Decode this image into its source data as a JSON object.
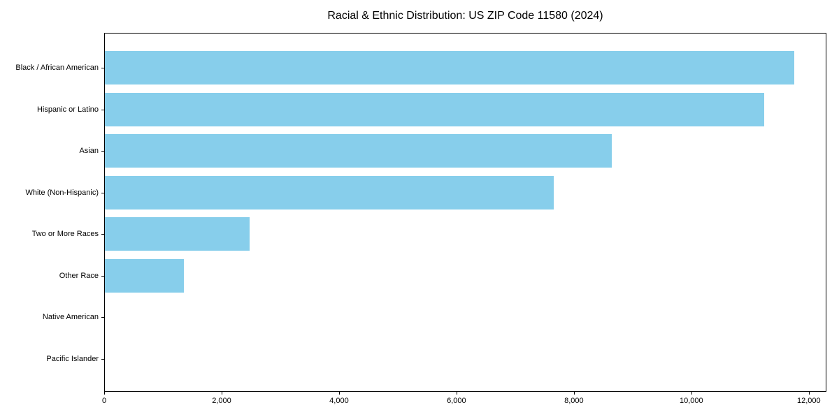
{
  "chart_data": {
    "type": "bar",
    "orientation": "horizontal",
    "title": "Racial & Ethnic Distribution: US ZIP Code 11580 (2024)",
    "categories": [
      "Black / African American",
      "Hispanic or Latino",
      "Asian",
      "White (Non-Hispanic)",
      "Two or More Races",
      "Other Race",
      "Native American",
      "Pacific Islander"
    ],
    "values": [
      11740,
      11230,
      8630,
      7650,
      2460,
      1340,
      0,
      0
    ],
    "xlabel": "",
    "ylabel": "",
    "xlim": [
      0,
      12300
    ],
    "x_ticks": [
      0,
      2000,
      4000,
      6000,
      8000,
      10000,
      12000
    ],
    "x_tick_labels": [
      "0",
      "2,000",
      "4,000",
      "6,000",
      "8,000",
      "10,000",
      "12,000"
    ],
    "bar_color": "#87CEEB",
    "axis_color": "#000000",
    "text_color": "#000000",
    "background": "#FFFFFF",
    "grid": false,
    "legend": "none"
  }
}
